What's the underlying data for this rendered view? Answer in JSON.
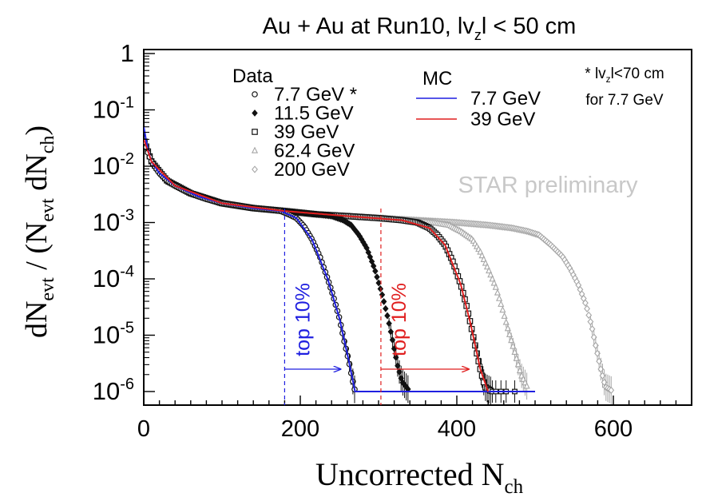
{
  "chart_data": {
    "type": "scatter",
    "title": "Au + Au at Run10, |v_z| < 50 cm",
    "title_parts": {
      "main": "Au + Au at Run10, lv",
      "sub": "z",
      "tail": "l < 50 cm"
    },
    "xlabel": "Uncorrected N_ch",
    "xlabel_parts": {
      "main": "Uncorrected N",
      "sub": "ch"
    },
    "ylabel": "dN_evt / (N_evt dN_ch)",
    "ylabel_parts": {
      "a": "dN",
      "a_sub": "evt",
      "b": " / (N",
      "b_sub": "evt",
      "c": " dN",
      "c_sub": "ch",
      "d": ")"
    },
    "xlim": [
      0,
      700
    ],
    "ylim": [
      1e-06,
      1
    ],
    "yscale": "log",
    "x_ticks": [
      "0",
      "200",
      "400",
      "600"
    ],
    "y_ticks": [
      {
        "base": "1",
        "exp": ""
      },
      {
        "base": "10",
        "exp": "-1"
      },
      {
        "base": "10",
        "exp": "-2"
      },
      {
        "base": "10",
        "exp": "-3"
      },
      {
        "base": "10",
        "exp": "-4"
      },
      {
        "base": "10",
        "exp": "-5"
      },
      {
        "base": "10",
        "exp": "-6"
      }
    ],
    "legend_data_title": "Data",
    "legend_mc_title": "MC",
    "legend_data": [
      {
        "label": "7.7 GeV *",
        "marker": "circle-open"
      },
      {
        "label": "11.5 GeV",
        "marker": "diamond-filled"
      },
      {
        "label": "39 GeV",
        "marker": "square-open"
      },
      {
        "label": "62.4 GeV",
        "marker": "triangle-open"
      },
      {
        "label": "200 GeV",
        "marker": "diamond-open"
      }
    ],
    "legend_mc": [
      {
        "label": "7.7 GeV",
        "color": "#1f1fe0"
      },
      {
        "label": "39 GeV",
        "color": "#e01f1f"
      }
    ],
    "note_line1": "* lv",
    "note_line1_sub": "z",
    "note_line1_tail": "l<70 cm",
    "note_line2": "for 7.7 GeV",
    "watermark": "STAR preliminary",
    "annotations": [
      {
        "text": "top 10%",
        "color": "#1f1fe0",
        "cut_x": 180
      },
      {
        "text": "top 10%",
        "color": "#e01f1f",
        "cut_x": 303
      }
    ],
    "series": [
      {
        "name": "7.7 GeV *",
        "kind": "data",
        "color": "#111111",
        "marker": "circle-open",
        "points": [
          [
            0,
            0.03
          ],
          [
            5,
            0.018
          ],
          [
            10,
            0.012
          ],
          [
            20,
            0.0075
          ],
          [
            30,
            0.0055
          ],
          [
            40,
            0.0045
          ],
          [
            50,
            0.0038
          ],
          [
            60,
            0.0033
          ],
          [
            70,
            0.0029
          ],
          [
            80,
            0.0026
          ],
          [
            100,
            0.0022
          ],
          [
            120,
            0.002
          ],
          [
            140,
            0.0018
          ],
          [
            160,
            0.0017
          ],
          [
            175,
            0.0016
          ],
          [
            185,
            0.0014
          ],
          [
            195,
            0.0012
          ],
          [
            205,
            0.00085
          ],
          [
            215,
            0.0005
          ],
          [
            225,
            0.00025
          ],
          [
            235,
            0.0001
          ],
          [
            242,
            5e-05
          ],
          [
            250,
            2e-05
          ],
          [
            256,
            8e-06
          ],
          [
            262,
            3.5e-06
          ],
          [
            266,
            1.8e-06
          ],
          [
            270,
            1e-06
          ]
        ]
      },
      {
        "name": "11.5 GeV",
        "kind": "data",
        "color": "#111111",
        "marker": "diamond-filled",
        "points": [
          [
            0,
            0.03
          ],
          [
            10,
            0.012
          ],
          [
            30,
            0.0055
          ],
          [
            60,
            0.0033
          ],
          [
            100,
            0.0022
          ],
          [
            140,
            0.0018
          ],
          [
            180,
            0.0016
          ],
          [
            200,
            0.0015
          ],
          [
            220,
            0.0014
          ],
          [
            240,
            0.0013
          ],
          [
            255,
            0.0011
          ],
          [
            265,
            0.0009
          ],
          [
            275,
            0.0006
          ],
          [
            285,
            0.00035
          ],
          [
            295,
            0.00015
          ],
          [
            305,
            5e-05
          ],
          [
            312,
            2e-05
          ],
          [
            318,
            8e-06
          ],
          [
            324,
            3e-06
          ],
          [
            330,
            1.5e-06
          ],
          [
            340,
            1e-06
          ]
        ]
      },
      {
        "name": "39 GeV",
        "kind": "data",
        "color": "#111111",
        "marker": "square-open",
        "points": [
          [
            0,
            0.03
          ],
          [
            10,
            0.012
          ],
          [
            30,
            0.0055
          ],
          [
            60,
            0.0033
          ],
          [
            100,
            0.0022
          ],
          [
            140,
            0.0018
          ],
          [
            180,
            0.0016
          ],
          [
            220,
            0.0014
          ],
          [
            260,
            0.0013
          ],
          [
            300,
            0.0012
          ],
          [
            330,
            0.0011
          ],
          [
            350,
            0.001
          ],
          [
            365,
            0.0008
          ],
          [
            375,
            0.0006
          ],
          [
            385,
            0.0004
          ],
          [
            395,
            0.0002
          ],
          [
            405,
            8e-05
          ],
          [
            412,
            3.5e-05
          ],
          [
            418,
            1.5e-05
          ],
          [
            424,
            6e-06
          ],
          [
            430,
            2.5e-06
          ],
          [
            436,
            1.2e-06
          ],
          [
            445,
            1e-06
          ],
          [
            460,
            1e-06
          ],
          [
            480,
            1e-06
          ]
        ]
      },
      {
        "name": "62.4 GeV",
        "kind": "data",
        "color": "#a6a6a6",
        "marker": "triangle-open",
        "points": [
          [
            0,
            0.03
          ],
          [
            10,
            0.012
          ],
          [
            30,
            0.0055
          ],
          [
            60,
            0.0033
          ],
          [
            100,
            0.0022
          ],
          [
            140,
            0.0018
          ],
          [
            180,
            0.0016
          ],
          [
            220,
            0.0014
          ],
          [
            260,
            0.0013
          ],
          [
            300,
            0.0012
          ],
          [
            340,
            0.0011
          ],
          [
            370,
            0.001
          ],
          [
            390,
            0.0009
          ],
          [
            405,
            0.0007
          ],
          [
            420,
            0.0005
          ],
          [
            430,
            0.0003
          ],
          [
            440,
            0.00015
          ],
          [
            450,
            7e-05
          ],
          [
            458,
            3e-05
          ],
          [
            466,
            1.2e-05
          ],
          [
            474,
            5e-06
          ],
          [
            482,
            2e-06
          ],
          [
            490,
            1.2e-06
          ]
        ]
      },
      {
        "name": "200 GeV",
        "kind": "data",
        "color": "#a6a6a6",
        "marker": "diamond-open",
        "points": [
          [
            0,
            0.03
          ],
          [
            10,
            0.012
          ],
          [
            30,
            0.0055
          ],
          [
            60,
            0.0033
          ],
          [
            100,
            0.0022
          ],
          [
            140,
            0.0018
          ],
          [
            180,
            0.0016
          ],
          [
            220,
            0.0014
          ],
          [
            260,
            0.0013
          ],
          [
            300,
            0.0012
          ],
          [
            350,
            0.0011
          ],
          [
            400,
            0.001
          ],
          [
            440,
            0.0009
          ],
          [
            470,
            0.0008
          ],
          [
            490,
            0.0007
          ],
          [
            505,
            0.0006
          ],
          [
            520,
            0.0004
          ],
          [
            535,
            0.00025
          ],
          [
            545,
            0.00015
          ],
          [
            555,
            8e-05
          ],
          [
            565,
            3.5e-05
          ],
          [
            572,
            1.5e-05
          ],
          [
            578,
            6e-06
          ],
          [
            584,
            2.5e-06
          ],
          [
            590,
            1.2e-06
          ],
          [
            600,
            1e-06
          ]
        ]
      },
      {
        "name": "MC 7.7 GeV",
        "kind": "mc",
        "color": "#1f1fe0",
        "points": [
          [
            0,
            0.05
          ],
          [
            5,
            0.02
          ],
          [
            10,
            0.012
          ],
          [
            20,
            0.0075
          ],
          [
            40,
            0.0045
          ],
          [
            70,
            0.0029
          ],
          [
            100,
            0.0022
          ],
          [
            140,
            0.0018
          ],
          [
            175,
            0.0016
          ],
          [
            195,
            0.0012
          ],
          [
            215,
            0.0005
          ],
          [
            235,
            0.0001
          ],
          [
            250,
            2e-05
          ],
          [
            262,
            3.5e-06
          ],
          [
            270,
            1e-06
          ],
          [
            500,
            1e-06
          ]
        ]
      },
      {
        "name": "MC 39 GeV",
        "kind": "mc",
        "color": "#e01f1f",
        "points": [
          [
            0,
            0.03
          ],
          [
            10,
            0.012
          ],
          [
            40,
            0.0045
          ],
          [
            100,
            0.0022
          ],
          [
            180,
            0.0016
          ],
          [
            260,
            0.0013
          ],
          [
            330,
            0.0011
          ],
          [
            365,
            0.0008
          ],
          [
            385,
            0.0004
          ],
          [
            405,
            8e-05
          ],
          [
            418,
            1.5e-05
          ],
          [
            430,
            2.5e-06
          ],
          [
            440,
            1e-06
          ]
        ]
      }
    ]
  }
}
